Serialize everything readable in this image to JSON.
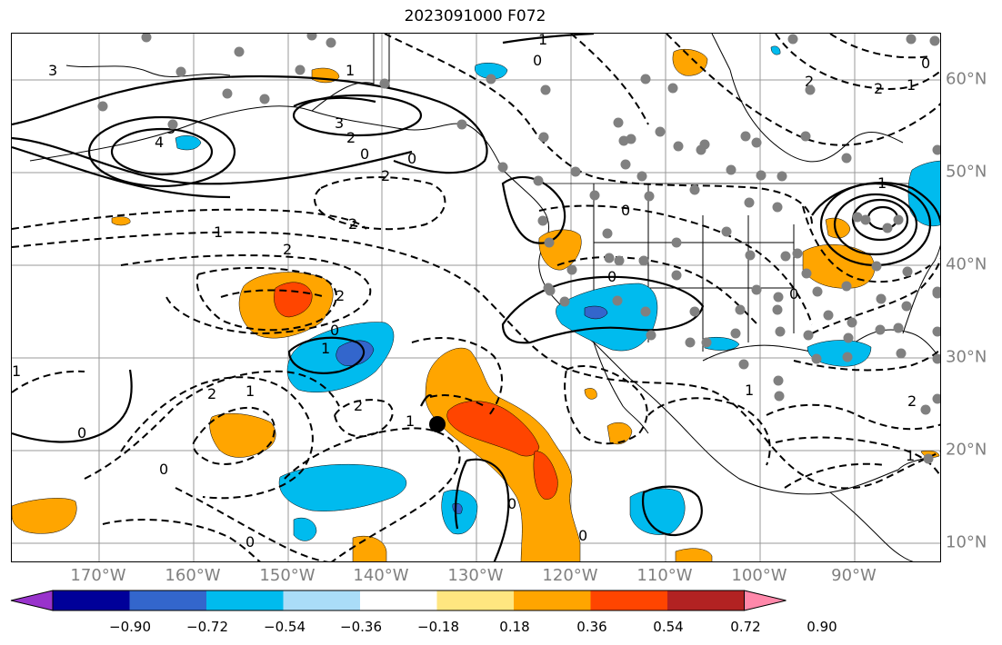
{
  "title": "2023091000 F072",
  "lon_labels": [
    "170°W",
    "160°W",
    "150°W",
    "140°W",
    "130°W",
    "120°W",
    "110°W",
    "100°W",
    "90°W"
  ],
  "lat_labels": [
    "60°N",
    "50°N",
    "40°N",
    "30°N",
    "20°N",
    "10°N"
  ],
  "colorbar": {
    "colors": [
      "#9933cc",
      "#000099",
      "#3366cc",
      "#00bbee",
      "#aaddf8",
      "#ffffff",
      "#ffe680",
      "#ffa500",
      "#ff4500",
      "#b22222",
      "#ff88aa"
    ],
    "labels": [
      "−0.90",
      "−0.72",
      "−0.54",
      "−0.36",
      "−0.18",
      "0.18",
      "0.36",
      "0.54",
      "0.72",
      "0.90"
    ]
  },
  "contour_labels": {
    "c1": "1",
    "c2": "0",
    "c3": "1",
    "c4": "3",
    "c5": "3",
    "c6": "2",
    "c7": "4",
    "c8": "3",
    "c9": "0",
    "c10": "0",
    "c11": "2",
    "c12": "2",
    "c13": "1",
    "c14": "2",
    "c15": "2",
    "c16": "0",
    "c17": "1",
    "c18": "1",
    "c19": "2",
    "c20": "1",
    "c21": "2",
    "c22": "0",
    "c23": "0",
    "c24": "0",
    "c25": "0",
    "c26": "1",
    "c27": "0",
    "c28": "0",
    "c29": "0",
    "c30": "1",
    "c31": "2",
    "c32": "2",
    "c33": "1",
    "c34": "0",
    "c35": "0",
    "c36": "1",
    "c37": "2",
    "c38": "1"
  }
}
